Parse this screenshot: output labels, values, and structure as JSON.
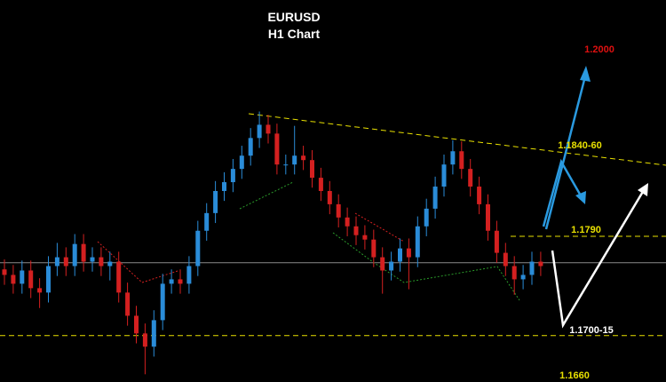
{
  "chart_data": {
    "type": "candlestick",
    "title": "EURUSD",
    "subtitle": "H1 Chart",
    "ylim": [
      1.1658,
      1.2004
    ],
    "up_color": "#2a8cd8",
    "down_color": "#d42020",
    "open": [
      1.176,
      1.1755,
      1.1747,
      1.1759,
      1.1743,
      1.1739,
      1.1763,
      1.1771,
      1.1763,
      1.1783,
      1.1767,
      1.1771,
      1.1763,
      1.1767,
      1.1739,
      1.1718,
      1.1702,
      1.169,
      1.1714,
      1.1747,
      1.1751,
      1.1747,
      1.1763,
      1.1795,
      1.1811,
      1.1831,
      1.1839,
      1.1851,
      1.1863,
      1.1879,
      1.1891,
      1.1883,
      1.1855,
      1.1855,
      1.1863,
      1.1859,
      1.1843,
      1.1831,
      1.1819,
      1.1807,
      1.1799,
      1.1791,
      1.1787,
      1.1771,
      1.1759,
      1.1767,
      1.1779,
      1.1771,
      1.1799,
      1.1815,
      1.1835,
      1.1855,
      1.1867,
      1.1851,
      1.1835,
      1.1819,
      1.1795,
      1.1775,
      1.1763,
      1.1751,
      1.1755,
      1.1767
    ],
    "high": [
      1.1769,
      1.1764,
      1.1768,
      1.1768,
      1.1752,
      1.1772,
      1.1784,
      1.178,
      1.1792,
      1.1792,
      1.178,
      1.178,
      1.1776,
      1.1776,
      1.1748,
      1.1727,
      1.1711,
      1.1723,
      1.1756,
      1.176,
      1.176,
      1.1772,
      1.1804,
      1.182,
      1.184,
      1.1848,
      1.186,
      1.1872,
      1.1888,
      1.1903,
      1.19,
      1.1892,
      1.1864,
      1.189,
      1.1872,
      1.1868,
      1.1852,
      1.184,
      1.1828,
      1.1816,
      1.1808,
      1.18,
      1.1796,
      1.178,
      1.1776,
      1.1788,
      1.1788,
      1.1808,
      1.1824,
      1.1844,
      1.1864,
      1.1877,
      1.1876,
      1.186,
      1.1844,
      1.1828,
      1.1804,
      1.1784,
      1.1772,
      1.1764,
      1.1776,
      1.1776
    ],
    "low": [
      1.1746,
      1.1738,
      1.1738,
      1.1734,
      1.1725,
      1.173,
      1.1754,
      1.1754,
      1.1754,
      1.1758,
      1.1758,
      1.1754,
      1.175,
      1.173,
      1.1709,
      1.1693,
      1.1665,
      1.1681,
      1.1705,
      1.1738,
      1.1738,
      1.1738,
      1.1754,
      1.1786,
      1.1802,
      1.1822,
      1.183,
      1.1842,
      1.1854,
      1.187,
      1.1874,
      1.1846,
      1.1846,
      1.1846,
      1.185,
      1.1834,
      1.1822,
      1.181,
      1.1798,
      1.179,
      1.1782,
      1.1778,
      1.1762,
      1.1738,
      1.175,
      1.1758,
      1.1742,
      1.1762,
      1.179,
      1.1806,
      1.1826,
      1.1846,
      1.1842,
      1.1826,
      1.181,
      1.1786,
      1.1766,
      1.1754,
      1.1737,
      1.1742,
      1.1746,
      1.1754
    ],
    "close": [
      1.1755,
      1.1747,
      1.1759,
      1.1743,
      1.1739,
      1.1763,
      1.1771,
      1.1763,
      1.1783,
      1.1767,
      1.1771,
      1.1763,
      1.1767,
      1.1739,
      1.1718,
      1.1702,
      1.169,
      1.1714,
      1.1747,
      1.1751,
      1.1747,
      1.1763,
      1.1795,
      1.1811,
      1.1831,
      1.1839,
      1.1851,
      1.1863,
      1.1879,
      1.1891,
      1.1883,
      1.1855,
      1.1855,
      1.1863,
      1.1859,
      1.1843,
      1.1831,
      1.1819,
      1.1807,
      1.1799,
      1.1791,
      1.1787,
      1.1771,
      1.1759,
      1.1767,
      1.1779,
      1.1771,
      1.1799,
      1.1815,
      1.1835,
      1.1855,
      1.1867,
      1.1851,
      1.1835,
      1.1819,
      1.1795,
      1.1775,
      1.1763,
      1.1751,
      1.1755,
      1.1767,
      1.1763
    ],
    "levels": [
      {
        "value": 1.179,
        "color": "#e8e000",
        "dashed": true
      },
      {
        "value": 1.17,
        "color": "#e8e000",
        "dashed": true
      },
      {
        "value": 1.1766,
        "color": "#8a8a8a",
        "dashed": false
      }
    ],
    "annotations": [
      "1.2000",
      "1.1840-60",
      "1.1790",
      "1.1700-15",
      "1.1660"
    ]
  }
}
